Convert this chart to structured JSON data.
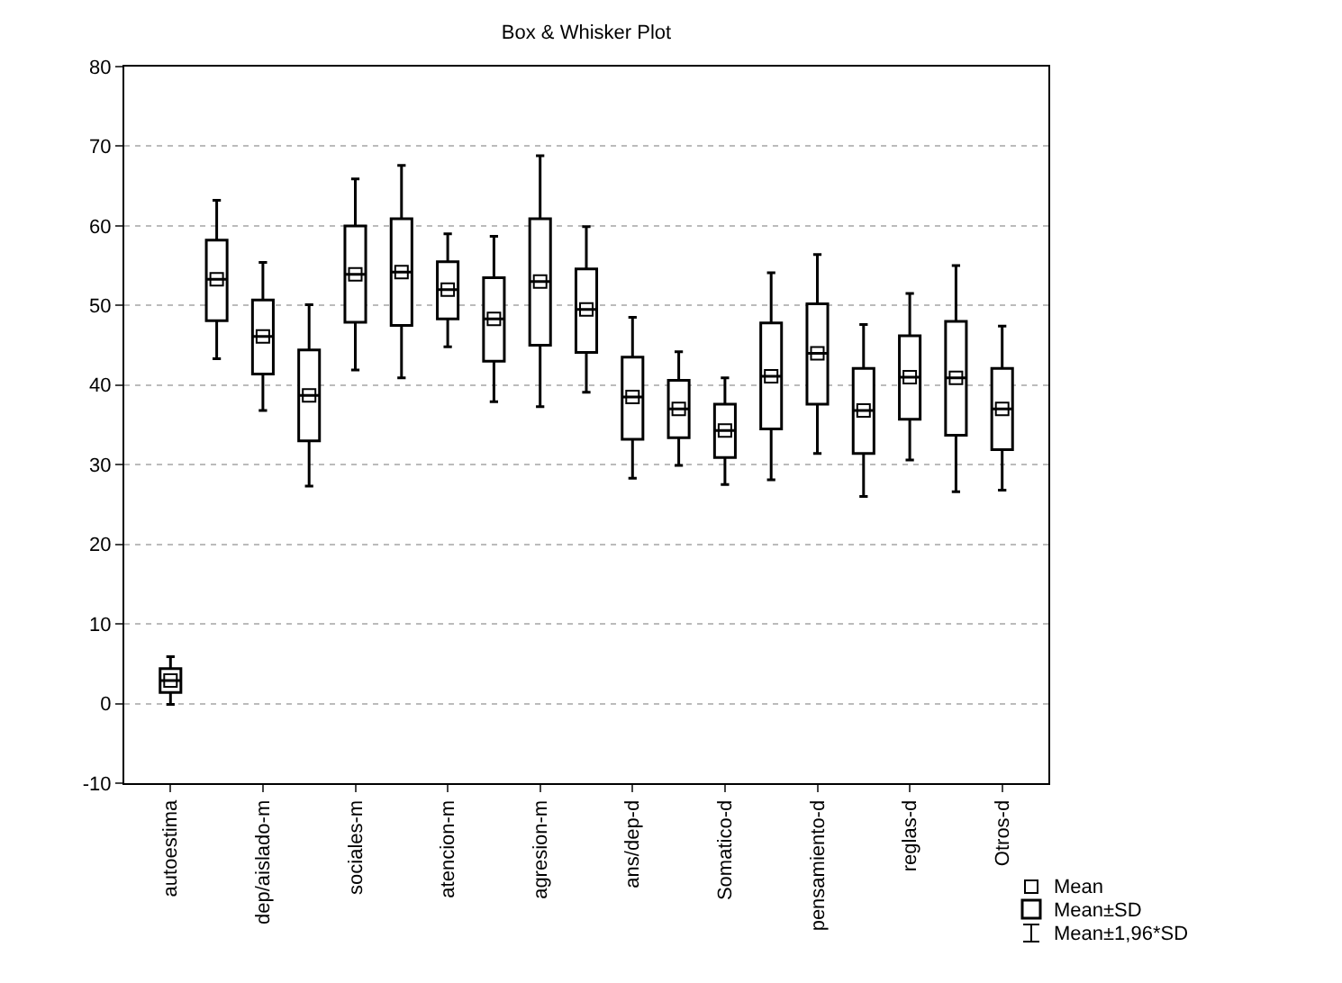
{
  "chart_data": {
    "type": "box",
    "title": "Box & Whisker Plot",
    "categories": [
      "autoestima",
      null,
      "dep/aislado-m",
      null,
      "sociales-m",
      null,
      "atencion-m",
      null,
      "agresion-m",
      null,
      "ans/dep-d",
      null,
      "Somatico-d",
      null,
      "pensamiento-d",
      null,
      "reglas-d",
      null,
      "Otros-d"
    ],
    "boxes": [
      {
        "low": -0.1,
        "q1": 1.4,
        "median": 2.9,
        "q3": 4.4,
        "high": 5.9,
        "mean": 2.9
      },
      {
        "low": 43.3,
        "q1": 48.1,
        "median": 53.3,
        "q3": 58.2,
        "high": 63.2,
        "mean": 53.3
      },
      {
        "low": 36.8,
        "q1": 41.4,
        "median": 46.1,
        "q3": 50.7,
        "high": 55.4,
        "mean": 46.1
      },
      {
        "low": 27.3,
        "q1": 33.0,
        "median": 38.7,
        "q3": 44.4,
        "high": 50.1,
        "mean": 38.7
      },
      {
        "low": 41.9,
        "q1": 47.9,
        "median": 53.9,
        "q3": 60.0,
        "high": 65.9,
        "mean": 53.9
      },
      {
        "low": 40.9,
        "q1": 47.5,
        "median": 54.2,
        "q3": 60.9,
        "high": 67.6,
        "mean": 54.2
      },
      {
        "low": 44.8,
        "q1": 48.3,
        "median": 52.0,
        "q3": 55.5,
        "high": 59.0,
        "mean": 52.0
      },
      {
        "low": 37.9,
        "q1": 43.0,
        "median": 48.3,
        "q3": 53.5,
        "high": 58.7,
        "mean": 48.3
      },
      {
        "low": 37.3,
        "q1": 45.0,
        "median": 53.0,
        "q3": 60.9,
        "high": 68.8,
        "mean": 53.0
      },
      {
        "low": 39.1,
        "q1": 44.1,
        "median": 49.5,
        "q3": 54.6,
        "high": 59.9,
        "mean": 49.5
      },
      {
        "low": 28.3,
        "q1": 33.2,
        "median": 38.5,
        "q3": 43.5,
        "high": 48.5,
        "mean": 38.5
      },
      {
        "low": 29.9,
        "q1": 33.4,
        "median": 37.0,
        "q3": 40.6,
        "high": 44.2,
        "mean": 37.0
      },
      {
        "low": 27.5,
        "q1": 30.9,
        "median": 34.3,
        "q3": 37.6,
        "high": 40.9,
        "mean": 34.3
      },
      {
        "low": 28.1,
        "q1": 34.5,
        "median": 41.1,
        "q3": 47.8,
        "high": 54.1,
        "mean": 41.1
      },
      {
        "low": 31.4,
        "q1": 37.6,
        "median": 44.0,
        "q3": 50.2,
        "high": 56.4,
        "mean": 44.0
      },
      {
        "low": 26.0,
        "q1": 31.4,
        "median": 36.8,
        "q3": 42.1,
        "high": 47.6,
        "mean": 36.8
      },
      {
        "low": 30.6,
        "q1": 35.7,
        "median": 41.0,
        "q3": 46.2,
        "high": 51.5,
        "mean": 41.0
      },
      {
        "low": 26.6,
        "q1": 33.7,
        "median": 40.9,
        "q3": 48.0,
        "high": 55.0,
        "mean": 40.9
      },
      {
        "low": 26.8,
        "q1": 31.9,
        "median": 37.0,
        "q3": 42.1,
        "high": 47.4,
        "mean": 37.0
      }
    ],
    "ylim": [
      -10,
      80
    ],
    "yticks": [
      -10,
      0,
      10,
      20,
      30,
      40,
      50,
      60,
      70,
      80
    ],
    "grid": "y",
    "marker": "square",
    "annotations": [
      "Mean",
      "Mean±SD",
      "Mean±1,96*SD"
    ]
  }
}
